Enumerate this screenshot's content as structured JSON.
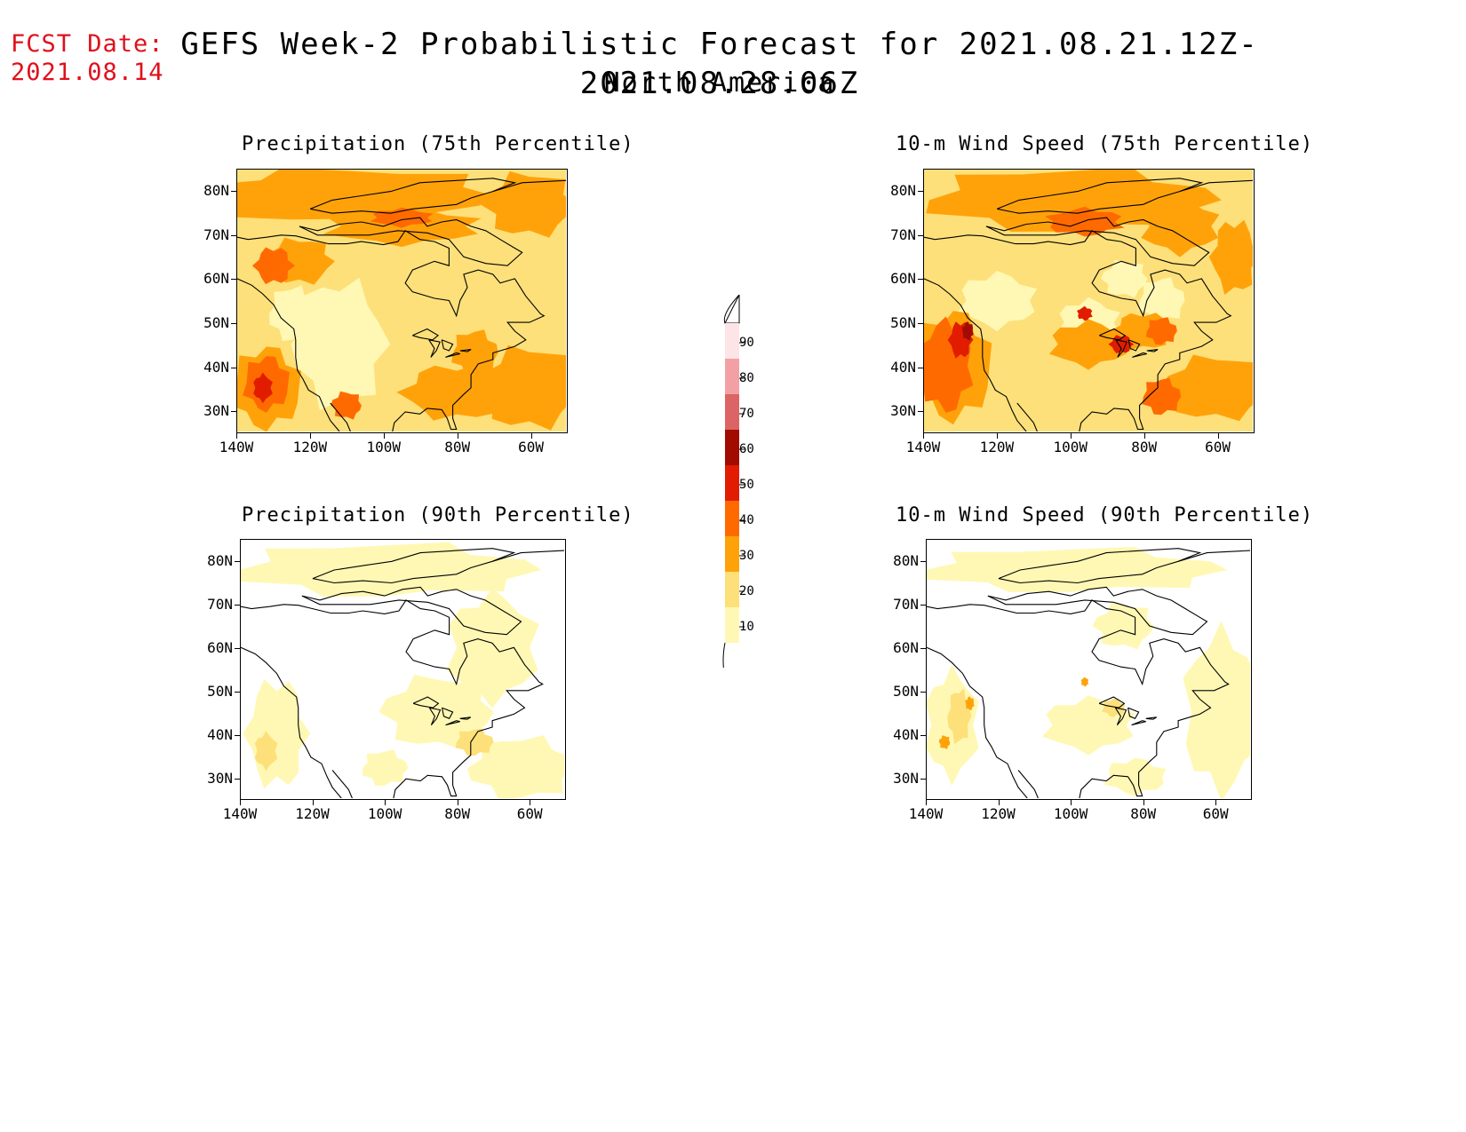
{
  "header": {
    "fcst_label": "FCST Date:",
    "fcst_date": "2021.08.14",
    "title": "GEFS Week-2 Probabilistic Forecast for 2021.08.21.12Z-2021.08.28.06Z",
    "subtitle": "North America"
  },
  "axes": {
    "lat_ticks": [
      "80N",
      "70N",
      "60N",
      "50N",
      "40N",
      "30N"
    ],
    "lon_ticks": [
      "140W",
      "120W",
      "100W",
      "80W",
      "60W"
    ]
  },
  "panels": [
    {
      "title": "Precipitation (75th Percentile)",
      "field": "precip75"
    },
    {
      "title": "10-m Wind Speed (75th Percentile)",
      "field": "wind75"
    },
    {
      "title": "Precipitation (90th Percentile)",
      "field": "precip90"
    },
    {
      "title": "10-m Wind Speed (90th Percentile)",
      "field": "wind90"
    }
  ],
  "colorbar": {
    "labels": [
      "90",
      "80",
      "70",
      "60",
      "50",
      "40",
      "30",
      "20",
      "10"
    ],
    "colors": [
      "#fde4e6",
      "#f3a0a4",
      "#dd6464",
      "#a20c00",
      "#e11c00",
      "#ff6a00",
      "#ffa20a",
      "#fde07a",
      "#fff8b4"
    ]
  }
}
